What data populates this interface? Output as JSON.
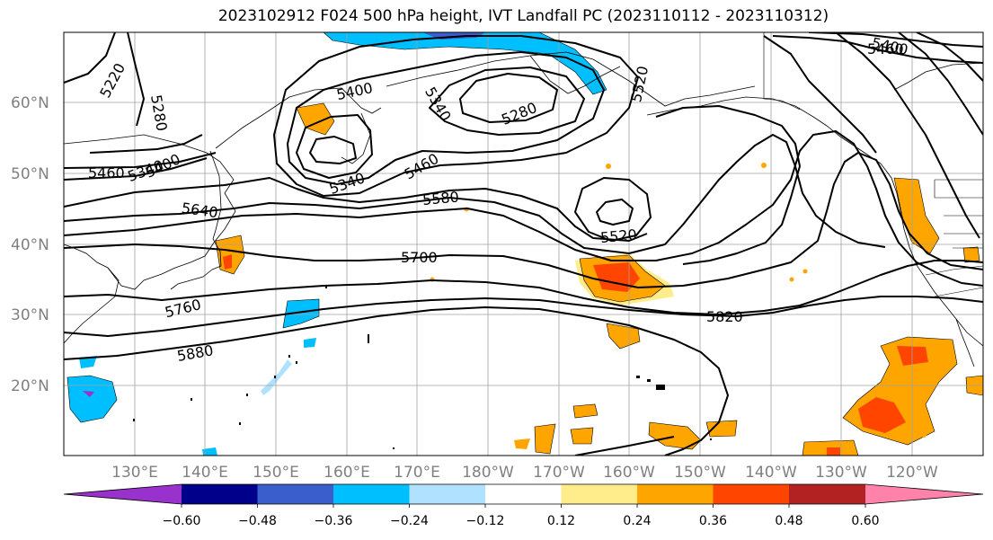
{
  "title": "2023102912 F024 500 hPa height, IVT Landfall PC (2023110112 - 2023110312)",
  "map": {
    "lat_labels": [
      "60°N",
      "50°N",
      "40°N",
      "30°N",
      "20°N"
    ],
    "lon_labels": [
      "130°E",
      "140°E",
      "150°E",
      "160°E",
      "170°E",
      "180°W",
      "170°W",
      "160°W",
      "150°W",
      "140°W",
      "130°W",
      "120°W"
    ],
    "contour_labels": [
      "5220",
      "5280",
      "5400",
      "5340",
      "5280",
      "5520",
      "5400",
      "5460",
      "5460",
      "5340",
      "5400",
      "5340",
      "5460",
      "5580",
      "5640",
      "5520",
      "5700",
      "5760",
      "5820",
      "5880"
    ]
  },
  "colorbar": {
    "colors": [
      "#9932cc",
      "#00008b",
      "#3a5fcd",
      "#00bfff",
      "#b0e2ff",
      "#ffffff",
      "#ffec8b",
      "#ffa500",
      "#ff4500",
      "#b22222",
      "#ff82ab"
    ],
    "tick_labels": [
      "−0.60",
      "−0.48",
      "−0.36",
      "−0.24",
      "−0.12",
      "0.12",
      "0.24",
      "0.36",
      "0.48",
      "0.60"
    ]
  }
}
